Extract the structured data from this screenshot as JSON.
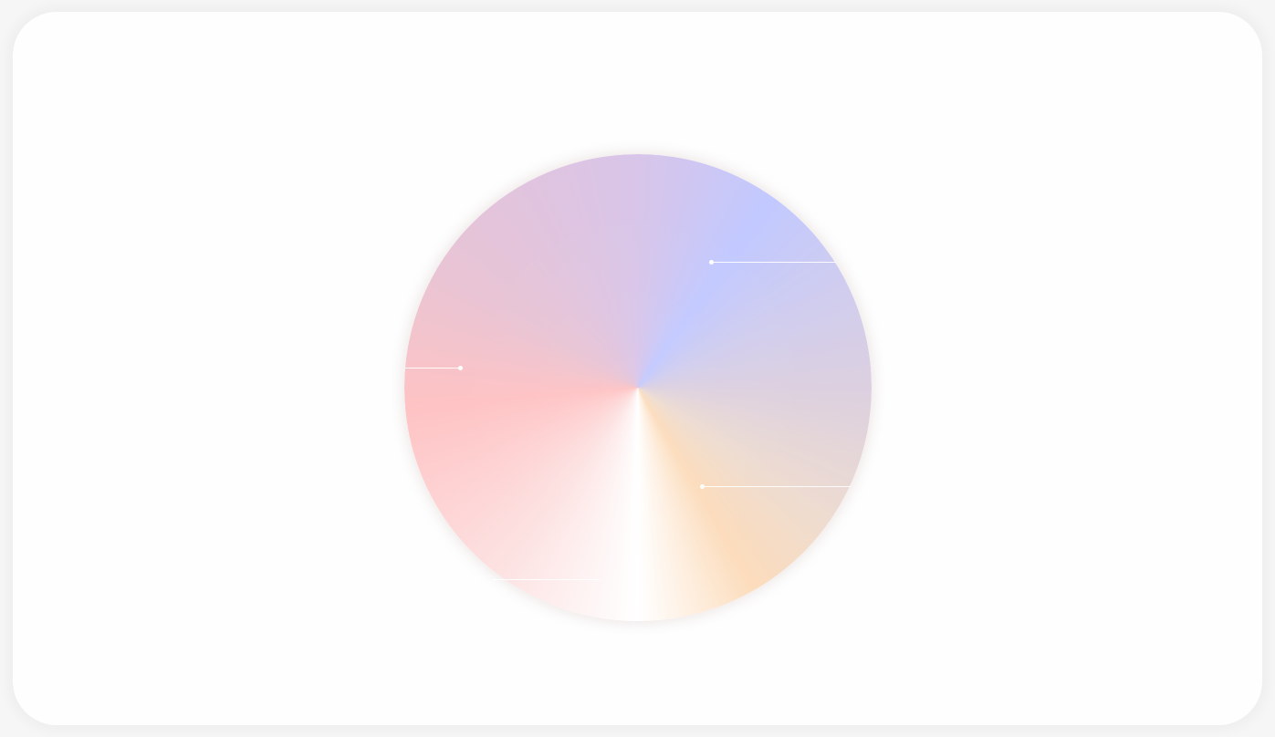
{
  "diagram": {
    "type": "conic-color-wheel",
    "segments": [
      {
        "name": "periwinkle",
        "color": "#c2c9ff"
      },
      {
        "name": "peach",
        "color": "#fcdcbc"
      },
      {
        "name": "white",
        "color": "#ffffff"
      },
      {
        "name": "pink",
        "color": "#fec3c4"
      },
      {
        "name": "lavender",
        "color": "#d8c5e9"
      }
    ],
    "callouts": [
      {
        "id": "upper-right",
        "color": "#ffffff"
      },
      {
        "id": "left",
        "color": "#ffffff"
      },
      {
        "id": "lower-right",
        "color": "#ffffff"
      },
      {
        "id": "bottom-left",
        "color": "#ffffff"
      }
    ],
    "colors": {
      "background": "#f7f6f6",
      "card": "#fefefe",
      "callout_line": "#ffffff"
    }
  }
}
